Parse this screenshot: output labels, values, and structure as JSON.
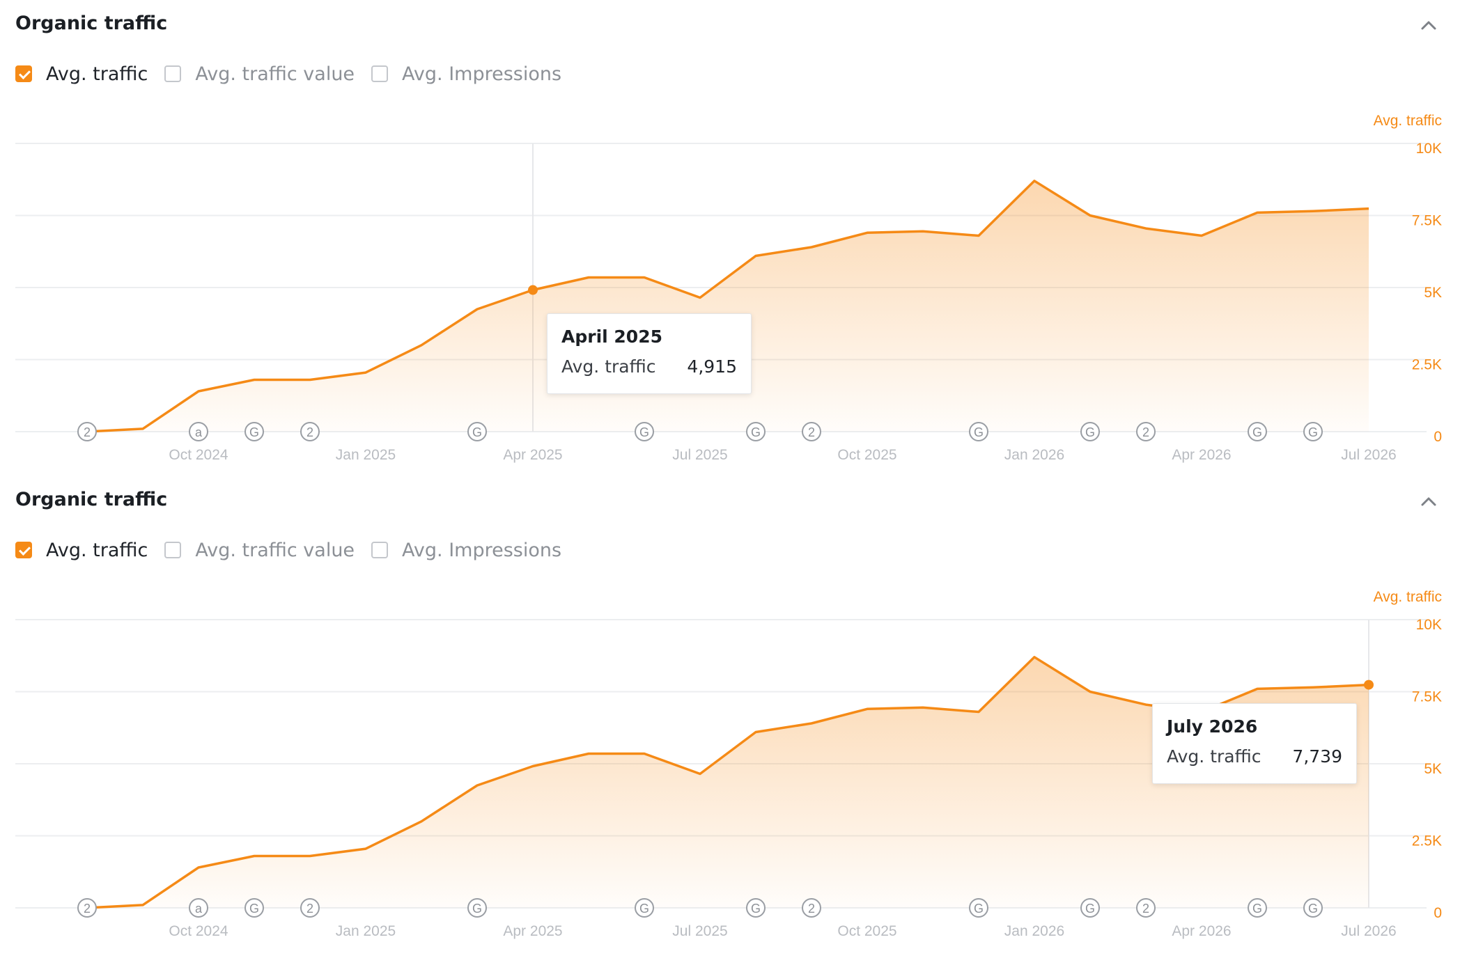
{
  "colors": {
    "accent": "#f58a16",
    "axis_text": "#b9bcc1",
    "grid": "#eceef0"
  },
  "panels": [
    {
      "title": "Organic traffic",
      "collapse_icon": "chevron-up-icon",
      "metrics": [
        {
          "label": "Avg. traffic",
          "checked": true
        },
        {
          "label": "Avg. traffic value",
          "checked": false
        },
        {
          "label": "Avg. Impressions",
          "checked": false
        }
      ],
      "tooltip": {
        "title": "April 2025",
        "label": "Avg. traffic",
        "value": "4,915"
      }
    },
    {
      "title": "Organic traffic",
      "collapse_icon": "chevron-up-icon",
      "metrics": [
        {
          "label": "Avg. traffic",
          "checked": true
        },
        {
          "label": "Avg. traffic value",
          "checked": false
        },
        {
          "label": "Avg. Impressions",
          "checked": false
        }
      ],
      "tooltip": {
        "title": "July 2026",
        "label": "Avg. traffic",
        "value": "7,739"
      }
    }
  ],
  "chart_data": [
    {
      "type": "area",
      "ylabel": "Avg. traffic",
      "ylim": [
        0,
        10000
      ],
      "yticks": [
        0,
        2500,
        5000,
        7500,
        10000
      ],
      "ytick_labels": [
        "0",
        "2.5K",
        "5K",
        "7.5K",
        "10K"
      ],
      "x_tick_labels": [
        "Oct 2024",
        "Jan 2025",
        "Apr 2025",
        "Jul 2025",
        "Oct 2025",
        "Jan 2026",
        "Apr 2026",
        "Jul 2026"
      ],
      "x": [
        "Aug 2024",
        "Sep 2024",
        "Oct 2024",
        "Nov 2024",
        "Dec 2024",
        "Jan 2025",
        "Feb 2025",
        "Mar 2025",
        "Apr 2025",
        "May 2025",
        "Jun 2025",
        "Jul 2025",
        "Aug 2025",
        "Sep 2025",
        "Oct 2025",
        "Nov 2025",
        "Dec 2025",
        "Jan 2026",
        "Feb 2026",
        "Mar 2026",
        "Apr 2026",
        "May 2026",
        "Jun 2026",
        "Jul 2026"
      ],
      "series": [
        {
          "values": [
            0,
            100,
            1400,
            1800,
            1800,
            2050,
            3000,
            4250,
            4915,
            5350,
            5350,
            4650,
            6100,
            6400,
            6900,
            6950,
            6800,
            8700,
            7500,
            7050,
            6800,
            7600,
            7650,
            7739
          ]
        }
      ],
      "grid": true,
      "highlight": {
        "x": "Apr 2025",
        "value": 4915
      },
      "annotations": [
        {
          "x": "Aug 2024",
          "label": "2"
        },
        {
          "x": "Oct 2024",
          "label": "a"
        },
        {
          "x": "Nov 2024",
          "label": "G"
        },
        {
          "x": "Dec 2024",
          "label": "2"
        },
        {
          "x": "Mar 2025",
          "label": "G"
        },
        {
          "x": "Jun 2025",
          "label": "G"
        },
        {
          "x": "Aug 2025",
          "label": "G"
        },
        {
          "x": "Sep 2025",
          "label": "2"
        },
        {
          "x": "Dec 2025",
          "label": "G"
        },
        {
          "x": "Feb 2026",
          "label": "G"
        },
        {
          "x": "Mar 2026",
          "label": "2"
        },
        {
          "x": "May 2026",
          "label": "G"
        },
        {
          "x": "Jun 2026",
          "label": "G"
        }
      ]
    },
    {
      "type": "area",
      "ylabel": "Avg. traffic",
      "ylim": [
        0,
        10000
      ],
      "yticks": [
        0,
        2500,
        5000,
        7500,
        10000
      ],
      "ytick_labels": [
        "0",
        "2.5K",
        "5K",
        "7.5K",
        "10K"
      ],
      "x_tick_labels": [
        "Oct 2024",
        "Jan 2025",
        "Apr 2025",
        "Jul 2025",
        "Oct 2025",
        "Jan 2026",
        "Apr 2026",
        "Jul 2026"
      ],
      "x": [
        "Aug 2024",
        "Sep 2024",
        "Oct 2024",
        "Nov 2024",
        "Dec 2024",
        "Jan 2025",
        "Feb 2025",
        "Mar 2025",
        "Apr 2025",
        "May 2025",
        "Jun 2025",
        "Jul 2025",
        "Aug 2025",
        "Sep 2025",
        "Oct 2025",
        "Nov 2025",
        "Dec 2025",
        "Jan 2026",
        "Feb 2026",
        "Mar 2026",
        "Apr 2026",
        "May 2026",
        "Jun 2026",
        "Jul 2026"
      ],
      "series": [
        {
          "values": [
            0,
            100,
            1400,
            1800,
            1800,
            2050,
            3000,
            4250,
            4915,
            5350,
            5350,
            4650,
            6100,
            6400,
            6900,
            6950,
            6800,
            8700,
            7500,
            7050,
            6800,
            7600,
            7650,
            7739
          ]
        }
      ],
      "grid": true,
      "highlight": {
        "x": "Jul 2026",
        "value": 7739
      },
      "annotations": [
        {
          "x": "Aug 2024",
          "label": "2"
        },
        {
          "x": "Oct 2024",
          "label": "a"
        },
        {
          "x": "Nov 2024",
          "label": "G"
        },
        {
          "x": "Dec 2024",
          "label": "2"
        },
        {
          "x": "Mar 2025",
          "label": "G"
        },
        {
          "x": "Jun 2025",
          "label": "G"
        },
        {
          "x": "Aug 2025",
          "label": "G"
        },
        {
          "x": "Sep 2025",
          "label": "2"
        },
        {
          "x": "Dec 2025",
          "label": "G"
        },
        {
          "x": "Feb 2026",
          "label": "G"
        },
        {
          "x": "Mar 2026",
          "label": "2"
        },
        {
          "x": "May 2026",
          "label": "G"
        },
        {
          "x": "Jun 2026",
          "label": "G"
        }
      ]
    }
  ]
}
